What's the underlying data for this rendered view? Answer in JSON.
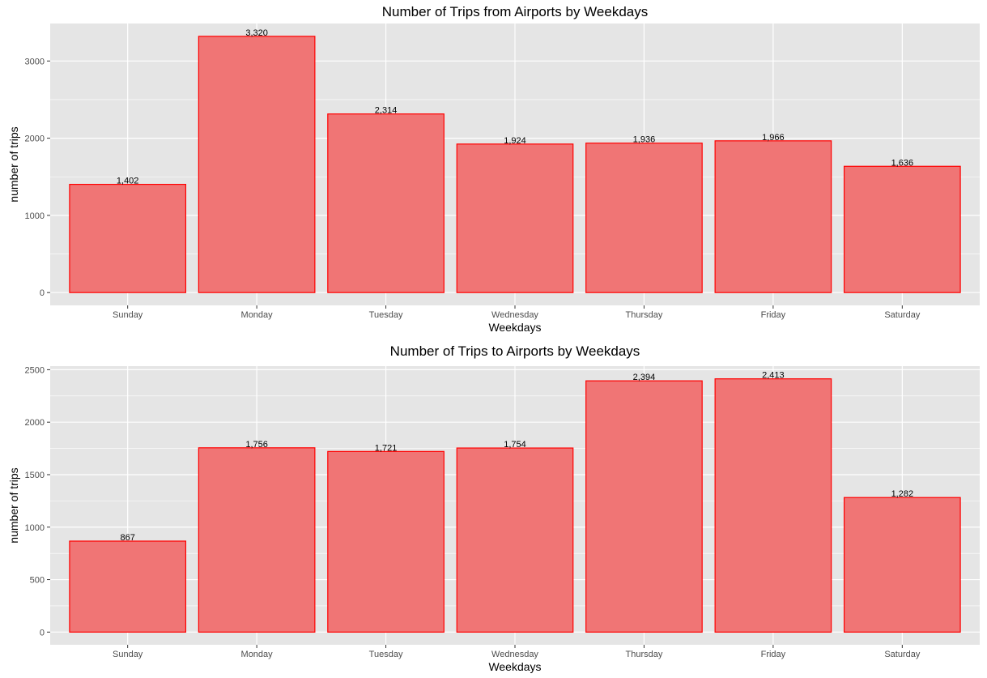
{
  "chart_data": [
    {
      "type": "bar",
      "title": "Number of Trips from Airports by Weekdays",
      "xlabel": "Weekdays",
      "ylabel": "number of trips",
      "categories": [
        "Sunday",
        "Monday",
        "Tuesday",
        "Wednesday",
        "Thursday",
        "Friday",
        "Saturday"
      ],
      "values": [
        1402,
        3320,
        2314,
        1924,
        1936,
        1966,
        1636
      ],
      "value_labels": [
        "1,402",
        "3,320",
        "2,314",
        "1,924",
        "1,936",
        "1,966",
        "1,636"
      ],
      "yticks": [
        0,
        1000,
        2000,
        3000
      ],
      "ylim": [
        -166,
        3486
      ],
      "grid": true,
      "colors": {
        "bar_fill": "#F07575",
        "bar_stroke": "#FF0000",
        "panel": "#E5E5E5",
        "grid": "#FFFFFF"
      }
    },
    {
      "type": "bar",
      "title": "Number of Trips to Airports by Weekdays",
      "xlabel": "Weekdays",
      "ylabel": "number of trips",
      "categories": [
        "Sunday",
        "Monday",
        "Tuesday",
        "Wednesday",
        "Thursday",
        "Friday",
        "Saturday"
      ],
      "values": [
        867,
        1756,
        1721,
        1754,
        2394,
        2413,
        1282
      ],
      "value_labels": [
        "867",
        "1,756",
        "1,721",
        "1,754",
        "2,394",
        "2,413",
        "1,282"
      ],
      "yticks": [
        0,
        500,
        1000,
        1500,
        2000,
        2500
      ],
      "ylim": [
        -121,
        2534
      ],
      "grid": true,
      "colors": {
        "bar_fill": "#F07575",
        "bar_stroke": "#FF0000",
        "panel": "#E5E5E5",
        "grid": "#FFFFFF"
      }
    }
  ]
}
